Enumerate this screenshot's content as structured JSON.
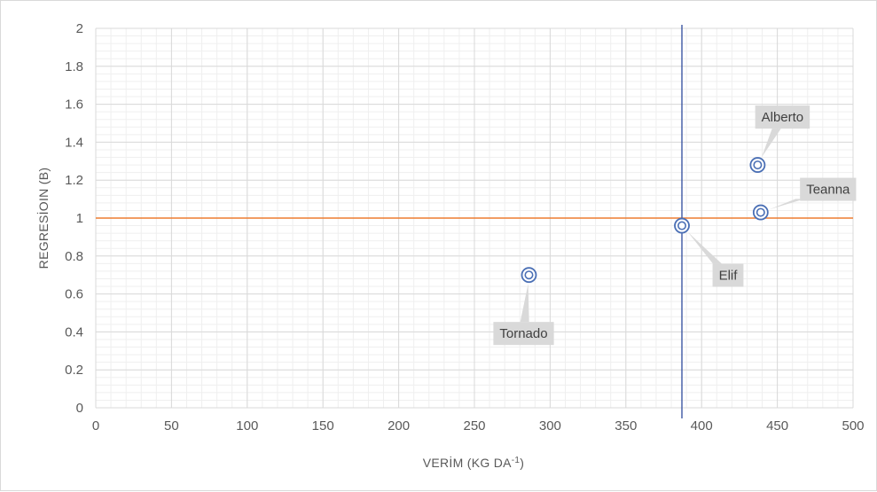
{
  "chart_data": {
    "type": "scatter",
    "title": "",
    "xlabel": "VERİM (KG DA",
    "xlabel_sup": "-1",
    "xlabel_close": ")",
    "ylabel": "REGRESİOIN (B)",
    "xlim": [
      0,
      500
    ],
    "ylim": [
      0,
      2
    ],
    "x_ticks": [
      "0",
      "50",
      "100",
      "150",
      "200",
      "250",
      "300",
      "350",
      "400",
      "450",
      "500"
    ],
    "y_ticks": [
      "0",
      "0.2",
      "0.4",
      "0.6",
      "0.8",
      "1",
      "1.2",
      "1.4",
      "1.6",
      "1.8",
      "2"
    ],
    "x_tick_values": [
      0,
      50,
      100,
      150,
      200,
      250,
      300,
      350,
      400,
      450,
      500
    ],
    "y_tick_values": [
      0,
      0.2,
      0.4,
      0.6,
      0.8,
      1,
      1.2,
      1.4,
      1.6,
      1.8,
      2
    ],
    "grid": true,
    "reference_lines": {
      "horizontal_y": 1,
      "horizontal_color": "#ed7d31",
      "vertical_x": 387,
      "vertical_color": "#2f4b9c"
    },
    "marker_color": "#4a6fb5",
    "points": [
      {
        "label": "Alberto",
        "x": 437,
        "y": 1.28
      },
      {
        "label": "Teanna",
        "x": 439,
        "y": 1.03
      },
      {
        "label": "Elif",
        "x": 387,
        "y": 0.96
      },
      {
        "label": "Tornado",
        "x": 286,
        "y": 0.7
      }
    ]
  }
}
